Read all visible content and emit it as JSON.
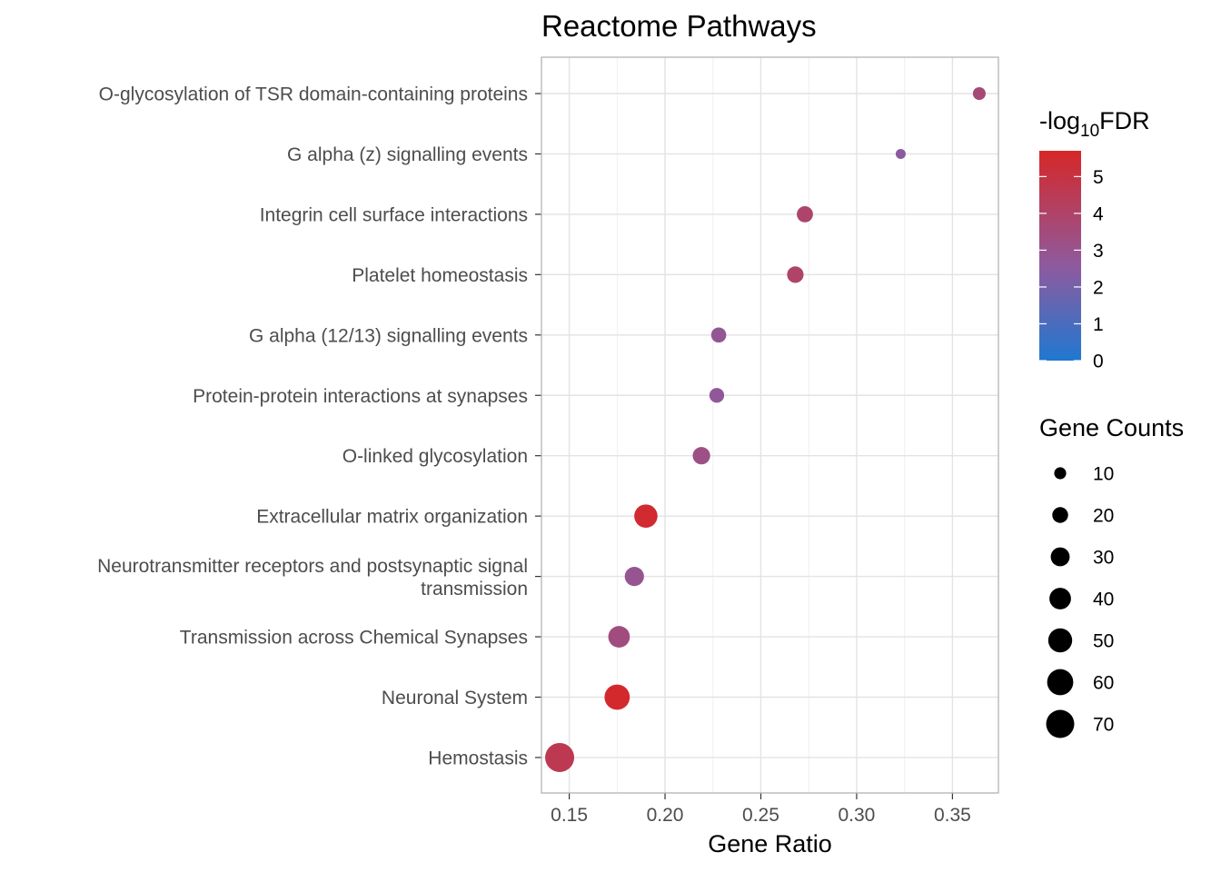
{
  "chart_data": {
    "type": "scatter",
    "title": "Reactome Pathways",
    "xlabel": "Gene Ratio",
    "ylabel": "",
    "xlim": [
      0.1355,
      0.374
    ],
    "x_ticks": [
      0.15,
      0.2,
      0.25,
      0.3,
      0.35
    ],
    "x_tick_labels": [
      "0.15",
      "0.20",
      "0.25",
      "0.30",
      "0.35"
    ],
    "categories": [
      "O-glycosylation of TSR domain-containing proteins",
      "G alpha (z) signalling events",
      "Integrin cell surface interactions",
      "Platelet homeostasis",
      "G alpha (12/13) signalling events",
      "Protein-protein interactions at synapses",
      "O-linked glycosylation",
      "Extracellular matrix organization",
      "Neurotransmitter receptors and postsynaptic signal transmission",
      "Transmission across Chemical Synapses",
      "Neuronal System",
      "Hemostasis"
    ],
    "category_lines": [
      [
        "O-glycosylation of TSR domain-containing proteins"
      ],
      [
        "G alpha (z) signalling events"
      ],
      [
        "Integrin cell surface interactions"
      ],
      [
        "Platelet homeostasis"
      ],
      [
        "G alpha (12/13) signalling events"
      ],
      [
        "Protein-protein interactions at synapses"
      ],
      [
        "O-linked glycosylation"
      ],
      [
        "Extracellular matrix organization"
      ],
      [
        "Neurotransmitter receptors and postsynaptic signal",
        "transmission"
      ],
      [
        "Transmission across Chemical Synapses"
      ],
      [
        "Neuronal System"
      ],
      [
        "Hemostasis"
      ]
    ],
    "gene_ratio": [
      0.364,
      0.323,
      0.273,
      0.268,
      0.228,
      0.227,
      0.219,
      0.19,
      0.184,
      0.176,
      0.175,
      0.145
    ],
    "gene_counts": [
      12,
      6,
      21,
      22,
      18,
      17,
      25,
      47,
      31,
      40,
      56,
      75
    ],
    "neg_log10_fdr": [
      3.6,
      2.5,
      3.9,
      4.0,
      2.8,
      2.7,
      3.2,
      5.5,
      2.9,
      3.4,
      5.6,
      4.6
    ],
    "color_scale": {
      "title_prefix": "-log",
      "title_sub": "10",
      "title_suffix": "FDR",
      "min": 0,
      "max": 5.7,
      "ticks": [
        0,
        1,
        2,
        3,
        4,
        5
      ],
      "tick_labels": [
        "0",
        "1",
        "2",
        "3",
        "4",
        "5"
      ],
      "low_color": "#1f78d1",
      "mid_color": "#8e5a9e",
      "high_color": "#d62728"
    },
    "size_scale": {
      "title": "Gene Counts",
      "breaks": [
        10,
        20,
        30,
        40,
        50,
        60,
        70
      ],
      "break_labels": [
        "10",
        "20",
        "30",
        "40",
        "50",
        "60",
        "70"
      ],
      "range_counts": [
        6,
        75
      ]
    },
    "grid": true,
    "legend_position": "right"
  }
}
